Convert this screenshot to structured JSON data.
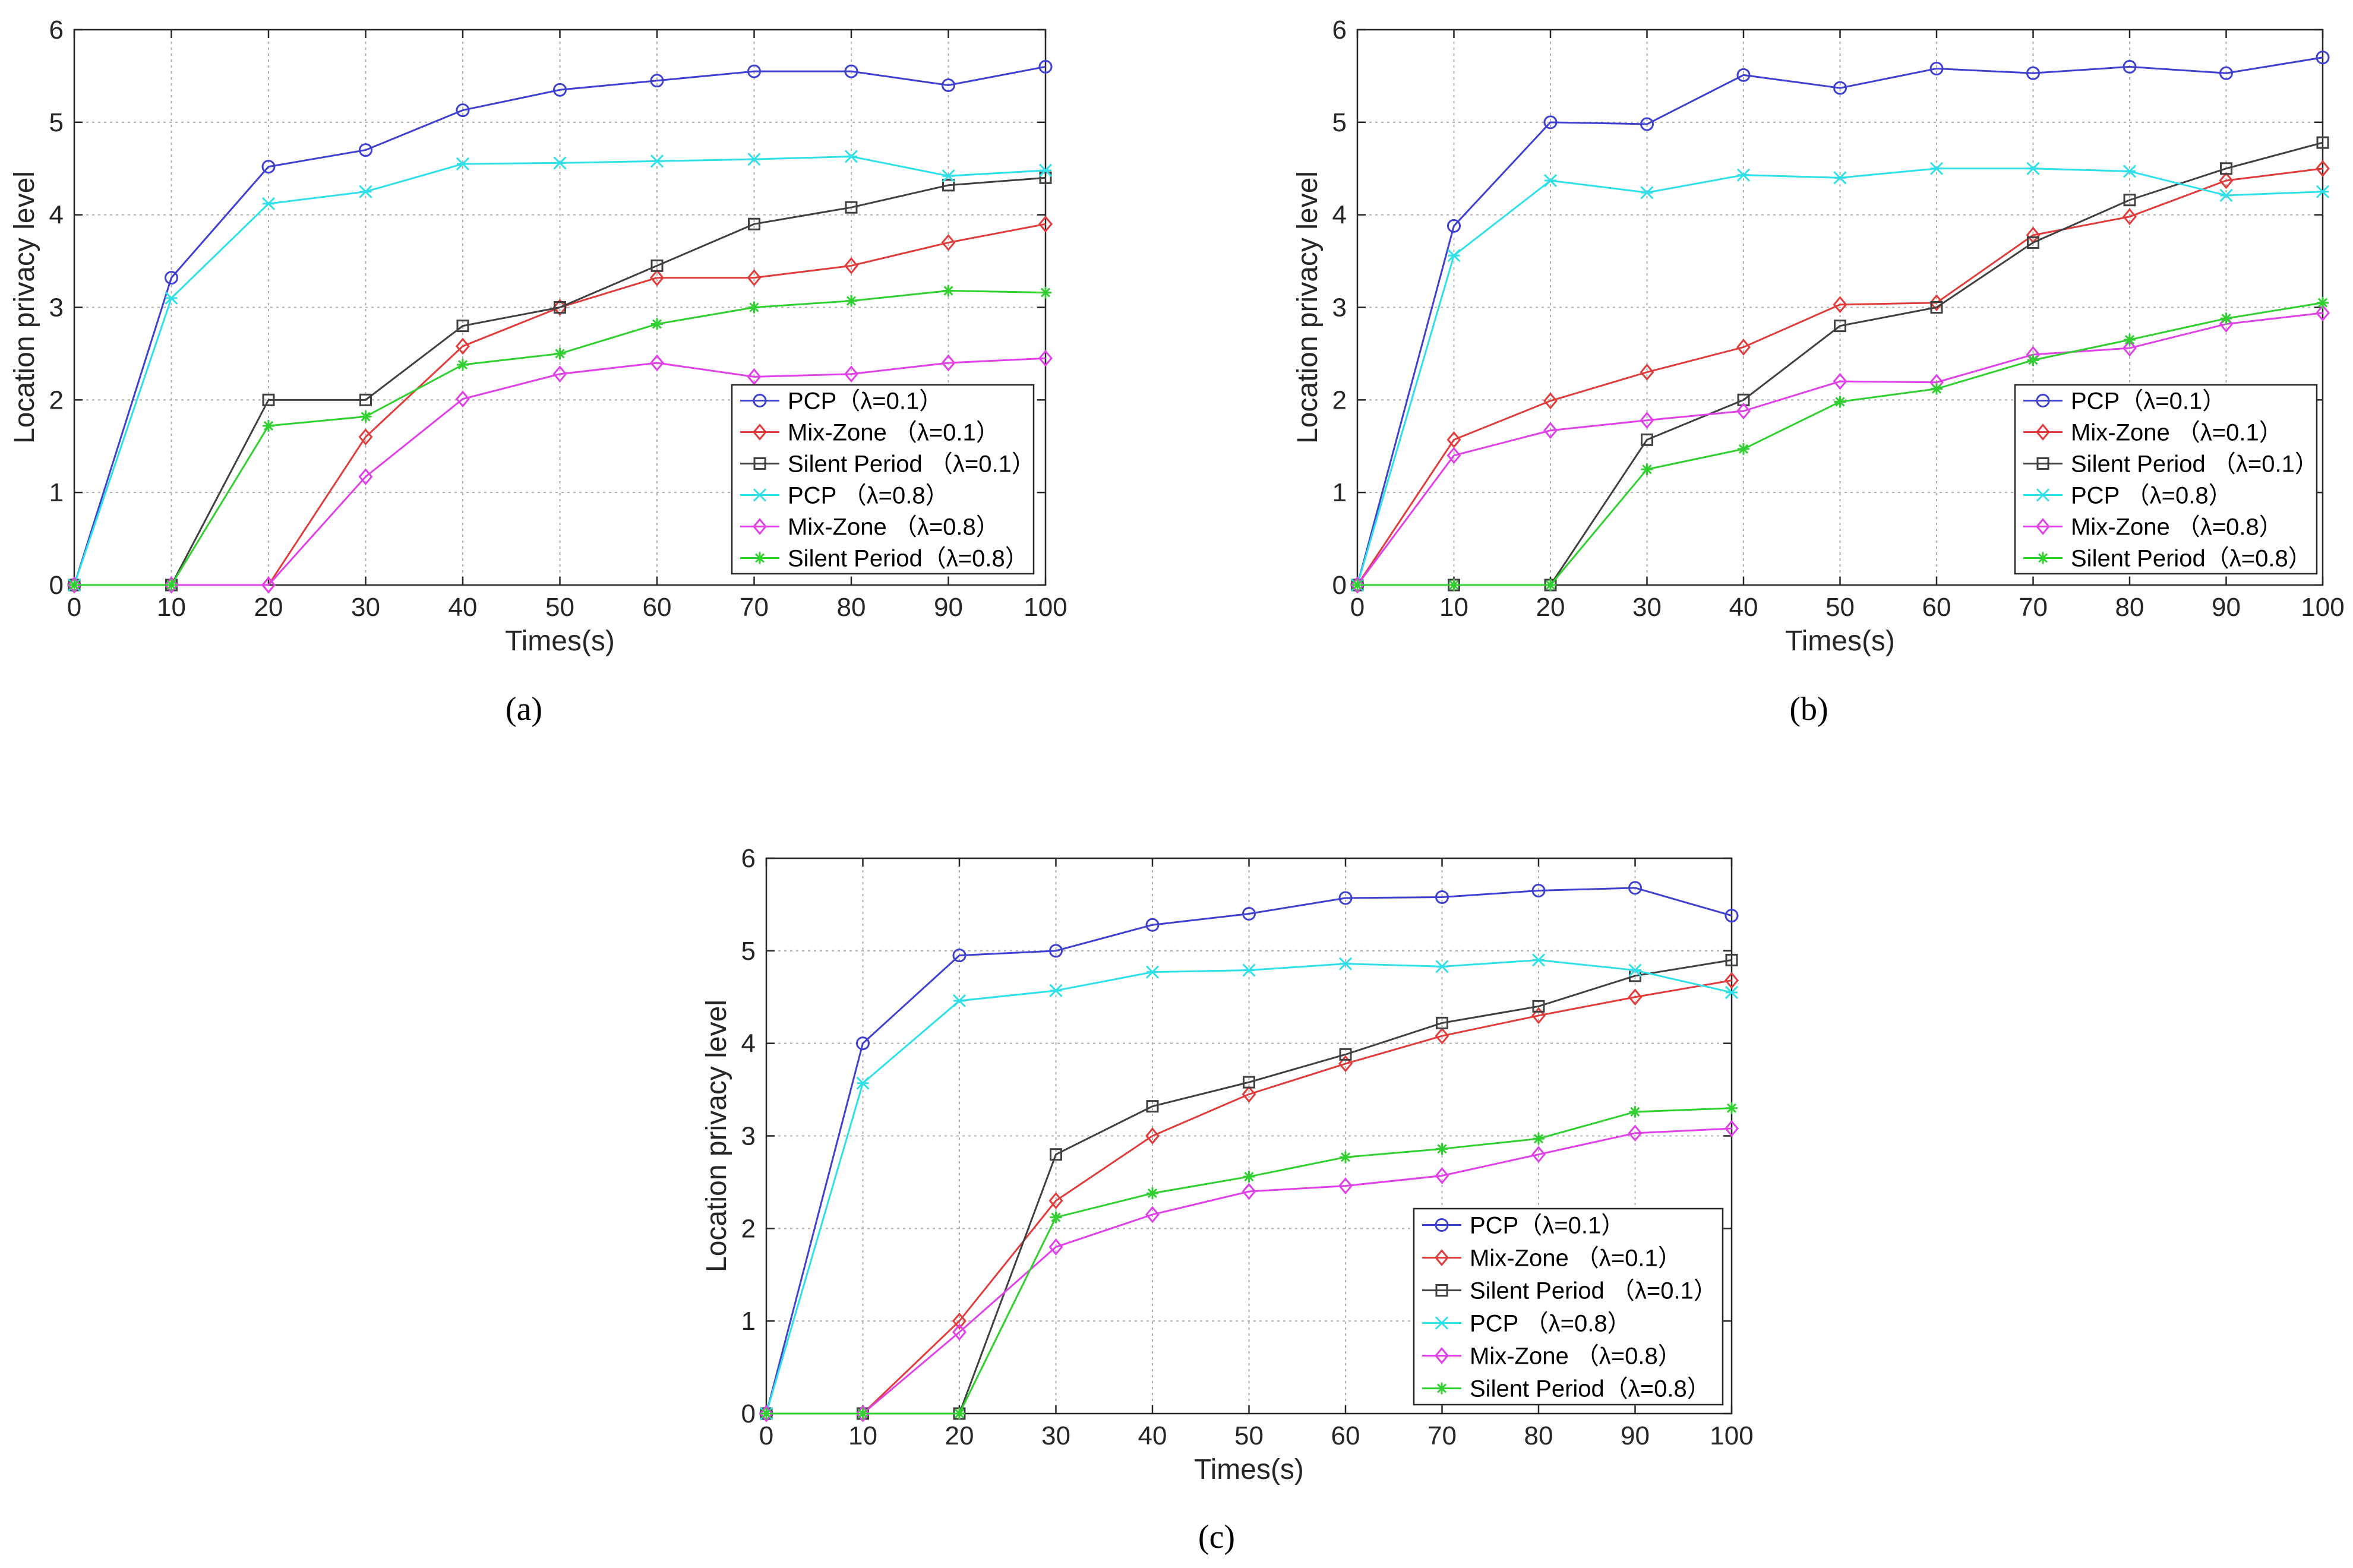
{
  "figure": {
    "panel_labels": [
      "(a)",
      "(b)",
      "(c)"
    ]
  },
  "colors": {
    "pcp_01": "#4040d0",
    "mix_01": "#e03c3c",
    "silent_01": "#404040",
    "pcp_08": "#30e0e8",
    "mix_08": "#e040e8",
    "silent_08": "#30d030"
  },
  "chart_data": [
    {
      "type": "line",
      "panel": "(a)",
      "title": "",
      "xlabel": "Times(s)",
      "ylabel": "Location privacy level",
      "xlim": [
        0,
        100
      ],
      "ylim": [
        0,
        6
      ],
      "x_ticks": [
        "0",
        "10",
        "20",
        "30",
        "40",
        "50",
        "60",
        "70",
        "80",
        "90",
        "100"
      ],
      "y_ticks": [
        "0",
        "1",
        "2",
        "3",
        "4",
        "5",
        "6"
      ],
      "grid": true,
      "legend_position": "bottom-right",
      "x": [
        0,
        10,
        20,
        30,
        40,
        50,
        60,
        70,
        80,
        90,
        100
      ],
      "series": [
        {
          "name": "PCP（λ=0.1）",
          "marker": "circle",
          "color_key": "pcp_01",
          "values": [
            0,
            3.32,
            4.52,
            4.7,
            5.13,
            5.35,
            5.45,
            5.55,
            5.55,
            5.4,
            5.6
          ]
        },
        {
          "name": "Mix-Zone （λ=0.1）",
          "marker": "diamond",
          "color_key": "mix_01",
          "values": [
            0,
            0,
            0,
            1.6,
            2.58,
            3.0,
            3.32,
            3.32,
            3.45,
            3.7,
            3.9
          ]
        },
        {
          "name": "Silent Period （λ=0.1）",
          "marker": "square",
          "color_key": "silent_01",
          "values": [
            0,
            0,
            2.0,
            2.0,
            2.8,
            3.0,
            3.45,
            3.9,
            4.08,
            4.32,
            4.4
          ]
        },
        {
          "name": "PCP （λ=0.8）",
          "marker": "x",
          "color_key": "pcp_08",
          "values": [
            0,
            3.1,
            4.12,
            4.25,
            4.55,
            4.56,
            4.58,
            4.6,
            4.63,
            4.42,
            4.48
          ]
        },
        {
          "name": "Mix-Zone （λ=0.8）",
          "marker": "diamond",
          "color_key": "mix_08",
          "values": [
            0,
            0,
            0,
            1.17,
            2.01,
            2.28,
            2.4,
            2.25,
            2.28,
            2.4,
            2.45
          ]
        },
        {
          "name": "Silent Period（λ=0.8）",
          "marker": "star",
          "color_key": "silent_08",
          "values": [
            0,
            0,
            1.72,
            1.82,
            2.38,
            2.5,
            2.82,
            3.0,
            3.07,
            3.18,
            3.16
          ]
        }
      ]
    },
    {
      "type": "line",
      "panel": "(b)",
      "title": "",
      "xlabel": "Times(s)",
      "ylabel": "Location privacy level",
      "xlim": [
        0,
        100
      ],
      "ylim": [
        0,
        6
      ],
      "x_ticks": [
        "0",
        "10",
        "20",
        "30",
        "40",
        "50",
        "60",
        "70",
        "80",
        "90",
        "100"
      ],
      "y_ticks": [
        "0",
        "1",
        "2",
        "3",
        "4",
        "5",
        "6"
      ],
      "grid": true,
      "legend_position": "bottom-right",
      "x": [
        0,
        10,
        20,
        30,
        40,
        50,
        60,
        70,
        80,
        90,
        100
      ],
      "series": [
        {
          "name": "PCP（λ=0.1）",
          "marker": "circle",
          "color_key": "pcp_01",
          "values": [
            0,
            3.88,
            5.0,
            4.98,
            5.51,
            5.37,
            5.58,
            5.53,
            5.6,
            5.53,
            5.7
          ]
        },
        {
          "name": "Mix-Zone （λ=0.1）",
          "marker": "diamond",
          "color_key": "mix_01",
          "values": [
            0,
            1.57,
            1.99,
            2.3,
            2.57,
            3.03,
            3.05,
            3.78,
            3.98,
            4.37,
            4.5
          ]
        },
        {
          "name": "Silent Period （λ=0.1）",
          "marker": "square",
          "color_key": "silent_01",
          "values": [
            0,
            0,
            0,
            1.57,
            2.0,
            2.8,
            3.0,
            3.7,
            4.16,
            4.5,
            4.78
          ]
        },
        {
          "name": "PCP （λ=0.8）",
          "marker": "x",
          "color_key": "pcp_08",
          "values": [
            0,
            3.56,
            4.37,
            4.24,
            4.43,
            4.4,
            4.5,
            4.5,
            4.47,
            4.21,
            4.25
          ]
        },
        {
          "name": "Mix-Zone （λ=0.8）",
          "marker": "diamond",
          "color_key": "mix_08",
          "values": [
            0,
            1.4,
            1.67,
            1.78,
            1.88,
            2.2,
            2.19,
            2.49,
            2.56,
            2.82,
            2.94
          ]
        },
        {
          "name": "Silent Period（λ=0.8）",
          "marker": "star",
          "color_key": "silent_08",
          "values": [
            0,
            0,
            0,
            1.25,
            1.47,
            1.98,
            2.12,
            2.43,
            2.65,
            2.88,
            3.05
          ]
        }
      ]
    },
    {
      "type": "line",
      "panel": "(c)",
      "title": "",
      "xlabel": "Times(s)",
      "ylabel": "Location privacy level",
      "xlim": [
        0,
        100
      ],
      "ylim": [
        0,
        6
      ],
      "x_ticks": [
        "0",
        "10",
        "20",
        "30",
        "40",
        "50",
        "60",
        "70",
        "80",
        "90",
        "100"
      ],
      "y_ticks": [
        "0",
        "1",
        "2",
        "3",
        "4",
        "5",
        "6"
      ],
      "grid": true,
      "legend_position": "bottom-right",
      "x": [
        0,
        10,
        20,
        30,
        40,
        50,
        60,
        70,
        80,
        90,
        100
      ],
      "series": [
        {
          "name": "PCP（λ=0.1）",
          "marker": "circle",
          "color_key": "pcp_01",
          "values": [
            0,
            4.0,
            4.95,
            5.0,
            5.28,
            5.4,
            5.57,
            5.58,
            5.65,
            5.68,
            5.38
          ]
        },
        {
          "name": "Mix-Zone （λ=0.1）",
          "marker": "diamond",
          "color_key": "mix_01",
          "values": [
            0,
            0,
            1.0,
            2.3,
            3.0,
            3.45,
            3.78,
            4.08,
            4.3,
            4.5,
            4.68
          ]
        },
        {
          "name": "Silent Period （λ=0.1）",
          "marker": "square",
          "color_key": "silent_01",
          "values": [
            0,
            0,
            0,
            2.8,
            3.32,
            3.58,
            3.88,
            4.22,
            4.4,
            4.73,
            4.9
          ]
        },
        {
          "name": "PCP （λ=0.8）",
          "marker": "x",
          "color_key": "pcp_08",
          "values": [
            0,
            3.57,
            4.46,
            4.57,
            4.77,
            4.79,
            4.86,
            4.83,
            4.9,
            4.79,
            4.55
          ]
        },
        {
          "name": "Mix-Zone （λ=0.8）",
          "marker": "diamond",
          "color_key": "mix_08",
          "values": [
            0,
            0,
            0.88,
            1.8,
            2.15,
            2.4,
            2.46,
            2.57,
            2.8,
            3.03,
            3.08
          ]
        },
        {
          "name": "Silent Period（λ=0.8）",
          "marker": "star",
          "color_key": "silent_08",
          "values": [
            0,
            0,
            0,
            2.12,
            2.38,
            2.56,
            2.77,
            2.86,
            2.97,
            3.26,
            3.3
          ]
        }
      ]
    }
  ]
}
